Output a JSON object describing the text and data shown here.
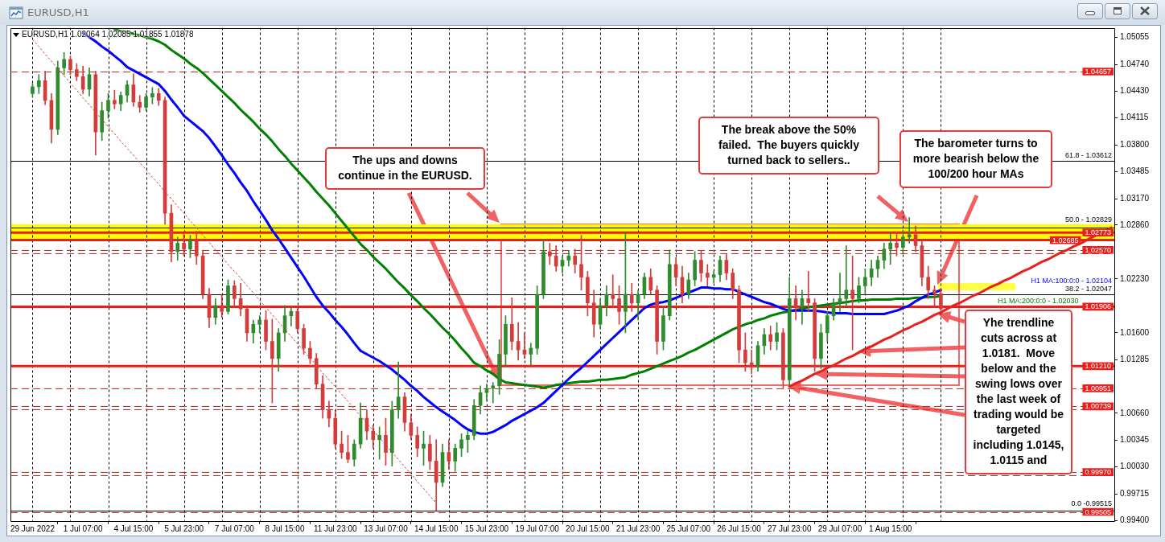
{
  "chart_data": {
    "type": "candlestick",
    "title": "EURUSD,H1",
    "subtitle": "EURUSD,H1 1.02064 1.02085 1.01855 1.01878",
    "categories": [
      "29 Jun 2022",
      null,
      null,
      null,
      null,
      null,
      null,
      null,
      "1 Jul 07:00",
      null,
      null,
      null,
      null,
      null,
      null,
      null,
      "4 Jul 15:00",
      null,
      null,
      null,
      null,
      null,
      null,
      null,
      "5 Jul 23:00",
      null,
      null,
      null,
      null,
      null,
      null,
      null,
      "7 Jul 07:00",
      null,
      null,
      null,
      null,
      null,
      null,
      null,
      "8 Jul 15:00",
      null,
      null,
      null,
      null,
      null,
      null,
      null,
      "11 Jul 23:00",
      null,
      null,
      null,
      null,
      null,
      null,
      null,
      "13 Jul 07:00",
      null,
      null,
      null,
      null,
      null,
      null,
      null,
      "14 Jul 15:00",
      null,
      null,
      null,
      null,
      null,
      null,
      null,
      "15 Jul 23:00",
      null,
      null,
      null,
      null,
      null,
      null,
      null,
      "19 Jul 07:00",
      null,
      null,
      null,
      null,
      null,
      null,
      null,
      "20 Jul 15:00",
      null,
      null,
      null,
      null,
      null,
      null,
      null,
      "21 Jul 23:00",
      null,
      null,
      null,
      null,
      null,
      null,
      null,
      "25 Jul 07:00",
      null,
      null,
      null,
      null,
      null,
      null,
      null,
      "26 Jul 15:00",
      null,
      null,
      null,
      null,
      null,
      null,
      null,
      "27 Jul 23:00",
      null,
      null,
      null,
      null,
      null,
      null,
      null,
      "29 Jul 07:00",
      null,
      null,
      null,
      null,
      null,
      null,
      null,
      "1 Aug 15:00",
      null,
      null,
      null,
      null,
      null,
      null,
      null,
      null,
      null,
      null,
      null,
      null,
      null,
      null,
      null,
      null,
      null,
      null,
      null,
      null,
      null,
      null,
      null,
      null,
      null,
      null,
      null,
      null,
      null,
      null,
      null,
      null,
      null,
      null,
      null
    ],
    "ohlc": [
      [
        1.044,
        1.0452,
        1.0436,
        1.0448
      ],
      [
        1.0448,
        1.0462,
        1.044,
        1.0455
      ],
      [
        1.0455,
        1.0466,
        1.0427,
        1.0432
      ],
      [
        1.0432,
        1.044,
        1.0382,
        1.0398
      ],
      [
        1.0398,
        1.0478,
        1.0392,
        1.047
      ],
      [
        1.047,
        1.0488,
        1.0462,
        1.048
      ],
      [
        1.048,
        1.0484,
        1.0462,
        1.0468
      ],
      [
        1.0468,
        1.0475,
        1.0455,
        1.046
      ],
      [
        1.046,
        1.0472,
        1.044,
        1.0445
      ],
      [
        1.0445,
        1.047,
        1.0437,
        1.0462
      ],
      [
        1.0462,
        1.0466,
        1.0368,
        1.0395
      ],
      [
        1.0395,
        1.043,
        1.0385,
        1.042
      ],
      [
        1.042,
        1.044,
        1.0411,
        1.0432
      ],
      [
        1.0432,
        1.0444,
        1.0422,
        1.0428
      ],
      [
        1.0428,
        1.0442,
        1.042,
        1.0438
      ],
      [
        1.0438,
        1.0455,
        1.043,
        1.045
      ],
      [
        1.045,
        1.0463,
        1.0425,
        1.043
      ],
      [
        1.043,
        1.0438,
        1.0418,
        1.0424
      ],
      [
        1.0424,
        1.044,
        1.042,
        1.0436
      ],
      [
        1.0436,
        1.0447,
        1.0428,
        1.044
      ],
      [
        1.044,
        1.0446,
        1.0426,
        1.0432
      ],
      [
        1.0432,
        1.0436,
        1.0287,
        1.03
      ],
      [
        1.03,
        1.031,
        1.0243,
        1.0255
      ],
      [
        1.0255,
        1.0272,
        1.0245,
        1.0265
      ],
      [
        1.0265,
        1.0276,
        1.025,
        1.0258
      ],
      [
        1.0258,
        1.0274,
        1.0248,
        1.0268
      ],
      [
        1.0268,
        1.0279,
        1.024,
        1.025
      ],
      [
        1.025,
        1.0256,
        1.02,
        1.0205
      ],
      [
        1.0205,
        1.0212,
        1.0166,
        1.0178
      ],
      [
        1.0178,
        1.02,
        1.017,
        1.0192
      ],
      [
        1.0192,
        1.0205,
        1.0178,
        1.0185
      ],
      [
        1.0185,
        1.0222,
        1.0182,
        1.0215
      ],
      [
        1.0215,
        1.0221,
        1.019,
        1.02
      ],
      [
        1.02,
        1.0218,
        1.018,
        1.0188
      ],
      [
        1.0188,
        1.0192,
        1.015,
        1.016
      ],
      [
        1.016,
        1.0175,
        1.0148,
        1.017
      ],
      [
        1.017,
        1.018,
        1.016,
        1.0175
      ],
      [
        1.0175,
        1.0186,
        1.014,
        1.015
      ],
      [
        1.015,
        1.0176,
        1.0078,
        1.013
      ],
      [
        1.013,
        1.0165,
        1.0115,
        1.016
      ],
      [
        1.016,
        1.0192,
        1.015,
        1.018
      ],
      [
        1.018,
        1.019,
        1.0168,
        1.0185
      ],
      [
        1.0185,
        1.0188,
        1.016,
        1.0165
      ],
      [
        1.0165,
        1.017,
        1.0135,
        1.0142
      ],
      [
        1.0142,
        1.015,
        1.0124,
        1.013
      ],
      [
        1.013,
        1.0136,
        1.0095,
        1.01
      ],
      [
        1.01,
        1.011,
        1.006,
        1.007
      ],
      [
        1.007,
        1.008,
        1.005,
        1.006
      ],
      [
        1.006,
        1.007,
        1.0025,
        1.003
      ],
      [
        1.003,
        1.0045,
        1.0013,
        1.002
      ],
      [
        1.002,
        1.004,
        1.0008,
        1.0012
      ],
      [
        1.0012,
        1.0035,
        1.0004,
        1.003
      ],
      [
        1.003,
        1.0078,
        1.0025,
        1.006
      ],
      [
        1.006,
        1.007,
        1.0035,
        1.0045
      ],
      [
        1.0045,
        1.0052,
        1.0025,
        1.0035
      ],
      [
        1.0035,
        1.005,
        1.0012,
        1.004
      ],
      [
        1.004,
        1.006,
        1.0005,
        1.002
      ],
      [
        1.002,
        1.008,
        1.0004,
        1.007
      ],
      [
        1.007,
        1.0126,
        1.006,
        1.0085
      ],
      [
        1.0085,
        1.009,
        1.0045,
        1.0055
      ],
      [
        1.0055,
        1.0065,
        1.0035,
        1.004
      ],
      [
        1.004,
        1.005,
        1.0015,
        1.0025
      ],
      [
        1.0025,
        1.0045,
        1.0005,
        1.003
      ],
      [
        1.003,
        1.004,
        1.0,
        1.001
      ],
      [
        1.001,
        1.0035,
        0.9952,
        0.9985
      ],
      [
        0.9985,
        1.003,
        0.998,
        1.002
      ],
      [
        1.002,
        1.0035,
        1.0,
        1.001
      ],
      [
        1.001,
        1.003,
        0.9998,
        1.0025
      ],
      [
        1.0025,
        1.0042,
        1.0015,
        1.0035
      ],
      [
        1.0035,
        1.0045,
        1.002,
        1.004
      ],
      [
        1.004,
        1.0082,
        1.0035,
        1.0075
      ],
      [
        1.0075,
        1.0098,
        1.0065,
        1.009
      ],
      [
        1.009,
        1.01,
        1.008,
        1.0095
      ],
      [
        1.0095,
        1.0102,
        1.0078,
        1.0098
      ],
      [
        1.0098,
        1.0152,
        1.0088,
        1.0135
      ],
      [
        1.0135,
        1.018,
        1.012,
        1.017
      ],
      [
        1.017,
        1.0201,
        1.014,
        1.015
      ],
      [
        1.015,
        1.0172,
        1.0128,
        1.014
      ],
      [
        1.014,
        1.016,
        1.013,
        1.0135
      ],
      [
        1.0135,
        1.0148,
        1.0122,
        1.0142
      ],
      [
        1.0142,
        1.0215,
        1.0135,
        1.0205
      ],
      [
        1.0205,
        1.0269,
        1.02,
        1.0255
      ],
      [
        1.0255,
        1.0265,
        1.024,
        1.025
      ],
      [
        1.025,
        1.0262,
        1.0232,
        1.0238
      ],
      [
        1.0238,
        1.025,
        1.023,
        1.0245
      ],
      [
        1.0245,
        1.0256,
        1.0238,
        1.025
      ],
      [
        1.025,
        1.0258,
        1.023,
        1.024
      ],
      [
        1.024,
        1.0274,
        1.021,
        1.0225
      ],
      [
        1.0225,
        1.0232,
        1.018,
        1.0195
      ],
      [
        1.0195,
        1.021,
        1.0155,
        1.017
      ],
      [
        1.017,
        1.02,
        1.0165,
        1.0192
      ],
      [
        1.0192,
        1.0215,
        1.018,
        1.0205
      ],
      [
        1.0205,
        1.0228,
        1.019,
        1.02
      ],
      [
        1.02,
        1.0215,
        1.017,
        1.0185
      ],
      [
        1.0185,
        1.0278,
        1.016,
        1.0205
      ],
      [
        1.0205,
        1.0218,
        1.0185,
        1.0195
      ],
      [
        1.0195,
        1.021,
        1.0175,
        1.0205
      ],
      [
        1.0205,
        1.023,
        1.02,
        1.0225
      ],
      [
        1.0225,
        1.0235,
        1.0205,
        1.021
      ],
      [
        1.021,
        1.0215,
        1.0135,
        1.015
      ],
      [
        1.015,
        1.019,
        1.014,
        1.018
      ],
      [
        1.018,
        1.0257,
        1.0175,
        1.024
      ],
      [
        1.024,
        1.0248,
        1.0215,
        1.0225
      ],
      [
        1.0225,
        1.0238,
        1.0195,
        1.0205
      ],
      [
        1.0205,
        1.023,
        1.02,
        1.0222
      ],
      [
        1.0222,
        1.0255,
        1.0215,
        1.0245
      ],
      [
        1.0245,
        1.0256,
        1.022,
        1.023
      ],
      [
        1.023,
        1.024,
        1.0215,
        1.0225
      ],
      [
        1.0225,
        1.0232,
        1.0218,
        1.0228
      ],
      [
        1.0228,
        1.025,
        1.022,
        1.0245
      ],
      [
        1.0245,
        1.0252,
        1.0222,
        1.023
      ],
      [
        1.023,
        1.0235,
        1.02,
        1.021
      ],
      [
        1.021,
        1.0215,
        1.0125,
        1.014
      ],
      [
        1.014,
        1.016,
        1.0115,
        1.0125
      ],
      [
        1.0125,
        1.014,
        1.0112,
        1.012
      ],
      [
        1.012,
        1.015,
        1.0115,
        1.0145
      ],
      [
        1.0145,
        1.0165,
        1.0135,
        1.0158
      ],
      [
        1.0158,
        1.0168,
        1.014,
        1.015
      ],
      [
        1.015,
        1.0172,
        1.014,
        1.016
      ],
      [
        1.016,
        1.0165,
        1.0095,
        1.0105
      ],
      [
        1.0105,
        1.0225,
        1.01,
        1.02
      ],
      [
        1.02,
        1.0215,
        1.0175,
        1.019
      ],
      [
        1.019,
        1.021,
        1.017,
        1.02
      ],
      [
        1.02,
        1.0232,
        1.0185,
        1.0195
      ],
      [
        1.0195,
        1.02,
        1.0115,
        1.013
      ],
      [
        1.013,
        1.017,
        1.0118,
        1.016
      ],
      [
        1.016,
        1.0185,
        1.015,
        1.018
      ],
      [
        1.018,
        1.02,
        1.0175,
        1.0195
      ],
      [
        1.0195,
        1.023,
        1.0185,
        1.02
      ],
      [
        1.02,
        1.0262,
        1.019,
        1.021
      ],
      [
        1.021,
        1.025,
        1.014,
        1.02
      ],
      [
        1.02,
        1.0225,
        1.0195,
        1.0215
      ],
      [
        1.0215,
        1.0235,
        1.0205,
        1.0225
      ],
      [
        1.0225,
        1.0245,
        1.0215,
        1.0235
      ],
      [
        1.0235,
        1.025,
        1.0225,
        1.0245
      ],
      [
        1.0245,
        1.0265,
        1.0235,
        1.0258
      ],
      [
        1.0258,
        1.0277,
        1.024,
        1.0265
      ],
      [
        1.0265,
        1.0278,
        1.025,
        1.026
      ],
      [
        1.026,
        1.028,
        1.0252,
        1.0272
      ],
      [
        1.0272,
        1.0295,
        1.0265,
        1.0275
      ],
      [
        1.0275,
        1.0285,
        1.0255,
        1.0262
      ],
      [
        1.0262,
        1.0268,
        1.0215,
        1.0225
      ],
      [
        1.0225,
        1.0238,
        1.02,
        1.021
      ],
      [
        1.021,
        1.0215,
        1.019,
        1.0206
      ],
      [
        1.0206,
        1.0212,
        1.0186,
        1.0188
      ],
      null,
      null,
      null,
      null,
      null,
      null,
      null,
      null,
      null,
      null,
      null,
      null,
      null,
      null,
      null,
      null,
      null,
      null,
      null,
      null,
      null,
      null,
      null,
      null,
      null,
      null,
      null
    ],
    "colors": [
      "#2e8b2e",
      "#2e8b2e",
      "#d43c3c",
      "#d43c3c",
      "#2e8b2e",
      "#2e8b2e",
      "#d43c3c",
      "#d43c3c",
      "#d43c3c",
      "#2e8b2e",
      "#d43c3c",
      "#2e8b2e",
      "#2e8b2e",
      "#d43c3c",
      "#2e8b2e",
      "#2e8b2e",
      "#d43c3c",
      "#d43c3c",
      "#2e8b2e",
      "#2e8b2e",
      "#d43c3c",
      "#d43c3c",
      "#d43c3c",
      "#2e8b2e",
      "#d43c3c",
      "#2e8b2e",
      "#d43c3c",
      "#d43c3c",
      "#d43c3c",
      "#2e8b2e",
      "#d43c3c",
      "#2e8b2e",
      "#d43c3c",
      "#d43c3c",
      "#d43c3c",
      "#2e8b2e",
      "#2e8b2e",
      "#d43c3c",
      "#d43c3c",
      "#2e8b2e",
      "#2e8b2e",
      "#2e8b2e",
      "#d43c3c",
      "#d43c3c",
      "#d43c3c",
      "#d43c3c",
      "#d43c3c",
      "#d43c3c",
      "#d43c3c",
      "#d43c3c",
      "#d43c3c",
      "#2e8b2e",
      "#2e8b2e",
      "#d43c3c",
      "#d43c3c",
      "#2e8b2e",
      "#d43c3c",
      "#2e8b2e",
      "#2e8b2e",
      "#d43c3c",
      "#d43c3c",
      "#d43c3c",
      "#2e8b2e",
      "#d43c3c",
      "#d43c3c",
      "#2e8b2e",
      "#d43c3c",
      "#2e8b2e",
      "#2e8b2e",
      "#2e8b2e",
      "#2e8b2e",
      "#2e8b2e",
      "#2e8b2e",
      "#2e8b2e",
      "#2e8b2e",
      "#2e8b2e",
      "#d43c3c",
      "#d43c3c",
      "#d43c3c",
      "#2e8b2e",
      "#2e8b2e",
      "#2e8b2e",
      "#d43c3c",
      "#d43c3c",
      "#2e8b2e",
      "#2e8b2e",
      "#d43c3c",
      "#d43c3c",
      "#d43c3c",
      "#d43c3c",
      "#2e8b2e",
      "#2e8b2e",
      "#d43c3c",
      "#d43c3c",
      "#2e8b2e",
      "#d43c3c",
      "#2e8b2e",
      "#2e8b2e",
      "#d43c3c",
      "#d43c3c",
      "#2e8b2e",
      "#2e8b2e",
      "#d43c3c",
      "#d43c3c",
      "#2e8b2e",
      "#2e8b2e",
      "#d43c3c",
      "#d43c3c",
      "#2e8b2e",
      "#2e8b2e",
      "#d43c3c",
      "#d43c3c",
      "#d43c3c",
      "#d43c3c",
      "#d43c3c",
      "#2e8b2e",
      "#2e8b2e",
      "#d43c3c",
      "#2e8b2e",
      "#d43c3c",
      "#2e8b2e",
      "#d43c3c",
      "#2e8b2e",
      "#d43c3c",
      "#d43c3c",
      "#2e8b2e",
      "#2e8b2e",
      "#2e8b2e",
      "#2e8b2e",
      "#2e8b2e",
      "#d43c3c",
      "#2e8b2e",
      "#2e8b2e",
      "#2e8b2e",
      "#2e8b2e",
      "#2e8b2e",
      "#2e8b2e",
      "#d43c3c",
      "#2e8b2e",
      "#2e8b2e",
      "#d43c3c",
      "#d43c3c",
      "#d43c3c",
      "#d43c3c",
      "#d43c3c",
      null,
      null,
      null,
      null,
      null,
      null,
      null,
      null,
      null,
      null,
      null,
      null,
      null,
      null,
      null,
      null,
      null,
      null,
      null,
      null,
      null,
      null,
      null,
      null,
      null,
      null,
      null
    ],
    "series": [
      {
        "type": "line",
        "name": "H1 MA:100:0:0 - 1.02104",
        "color": "#0000ff",
        "values": [
          null,
          null,
          null,
          null,
          null,
          null,
          null,
          null,
          1.0511,
          1.0506,
          1.0501,
          1.0495,
          1.049,
          1.0484,
          1.0478,
          1.0471,
          1.0467,
          1.0463,
          1.0459,
          1.0455,
          1.0451,
          1.0443,
          1.0433,
          1.0424,
          1.0414,
          1.0408,
          1.0402,
          1.0396,
          1.0388,
          1.0378,
          1.0368,
          1.0357,
          1.0347,
          1.0336,
          1.0326,
          1.0314,
          1.0303,
          1.0292,
          1.028,
          1.027,
          1.0259,
          1.0248,
          1.0237,
          1.0226,
          1.0214,
          1.0202,
          1.0192,
          1.0184,
          1.0175,
          1.0167,
          1.0158,
          1.0148,
          1.0139,
          1.0135,
          1.0131,
          1.0127,
          1.0122,
          1.0117,
          1.0111,
          1.0105,
          1.0098,
          1.0092,
          1.0085,
          1.0079,
          1.0073,
          1.0068,
          1.0063,
          1.0058,
          1.0052,
          1.0047,
          1.0044,
          1.0042,
          1.0042,
          1.0044,
          1.0048,
          1.0052,
          1.0057,
          1.0061,
          1.0065,
          1.0069,
          1.0073,
          1.0078,
          1.0085,
          1.0092,
          1.0099,
          1.0106,
          1.0113,
          1.0119,
          1.0126,
          1.0133,
          1.014,
          1.0147,
          1.0154,
          1.0161,
          1.0168,
          1.0175,
          1.0182,
          1.0189,
          1.0193,
          1.0195,
          1.0196,
          1.0198,
          1.0201,
          1.0204,
          1.0207,
          1.021,
          1.0213,
          1.0213,
          1.0212,
          1.0212,
          1.0211,
          1.0211,
          1.0208,
          1.0205,
          1.0202,
          1.0199,
          1.0196,
          1.0194,
          1.0191,
          1.0188,
          1.0186,
          1.0186,
          1.0186,
          1.0186,
          1.0186,
          1.0185,
          1.0184,
          1.0183,
          1.0183,
          1.0183,
          1.0182,
          1.0182,
          1.0182,
          1.0182,
          1.0182,
          1.0182,
          1.0184,
          1.0186,
          1.0189,
          1.0192,
          1.0197,
          1.0201,
          1.0205,
          1.0207,
          1.021,
          null,
          null,
          null,
          null,
          null,
          null,
          null,
          null,
          null,
          null,
          null,
          null,
          null,
          null,
          null,
          null,
          null,
          null,
          null,
          null,
          null,
          null,
          null,
          null,
          null,
          null,
          null
        ]
      },
      {
        "type": "line",
        "name": "H1 MA:200:0:0 - 1.02030",
        "color": "#008000",
        "values": [
          null,
          null,
          null,
          null,
          null,
          null,
          null,
          null,
          null,
          null,
          null,
          null,
          null,
          1.0515,
          1.0513,
          1.0512,
          1.051,
          1.0508,
          1.0506,
          1.0504,
          1.0501,
          1.0497,
          1.0491,
          1.0486,
          1.0481,
          1.0475,
          1.047,
          1.0464,
          1.0457,
          1.045,
          1.0443,
          1.0436,
          1.0429,
          1.0421,
          1.0414,
          1.0407,
          1.0399,
          1.0392,
          1.0384,
          1.0375,
          1.0367,
          1.0358,
          1.035,
          1.0342,
          1.0334,
          1.0325,
          1.0317,
          1.0309,
          1.03,
          1.0291,
          1.0282,
          1.0273,
          1.0264,
          1.0257,
          1.0249,
          1.0242,
          1.0235,
          1.0227,
          1.0219,
          1.0212,
          1.0204,
          1.0197,
          1.0189,
          1.0182,
          1.0174,
          1.0166,
          1.0159,
          1.0151,
          1.0142,
          1.0134,
          1.0125,
          1.0121,
          1.0116,
          1.0112,
          1.0106,
          1.0102,
          1.0101,
          1.01,
          1.0099,
          1.0098,
          1.0097,
          1.0096,
          1.0097,
          1.0099,
          1.01,
          1.0101,
          1.0102,
          1.0103,
          1.0103,
          1.0104,
          1.0105,
          1.0105,
          1.0106,
          1.0107,
          1.0108,
          1.0111,
          1.0113,
          1.0115,
          1.0118,
          1.0121,
          1.0124,
          1.0127,
          1.013,
          1.0133,
          1.0137,
          1.014,
          1.0144,
          1.0148,
          1.0152,
          1.0156,
          1.016,
          1.0164,
          1.0167,
          1.017,
          1.0172,
          1.0175,
          1.0177,
          1.018,
          1.0182,
          1.0184,
          1.0185,
          1.0187,
          1.0188,
          1.019,
          1.0191,
          1.0192,
          1.0193,
          1.0194,
          1.0195,
          1.0196,
          1.0197,
          1.0198,
          1.0198,
          1.0199,
          1.0199,
          1.0199,
          1.0199,
          1.02,
          1.02,
          1.02,
          1.0201,
          1.0201,
          1.0202,
          1.0202,
          1.0203,
          null,
          null,
          null,
          null,
          null,
          null,
          null,
          null,
          null,
          null,
          null,
          null,
          null,
          null,
          null,
          null,
          null,
          null,
          null,
          null,
          null,
          null,
          null,
          null,
          null,
          null,
          null
        ]
      },
      {
        "type": "line",
        "color": "#e8201c",
        "values": [
          null,
          null,
          null,
          null,
          null,
          null,
          null,
          null,
          null,
          null,
          null,
          null,
          null,
          null,
          null,
          null,
          null,
          null,
          null,
          null,
          null,
          null,
          null,
          null,
          null,
          null,
          null,
          null,
          null,
          null,
          null,
          null,
          null,
          null,
          null,
          null,
          null,
          null,
          null,
          null,
          null,
          null,
          null,
          null,
          null,
          null,
          null,
          null,
          null,
          null,
          null,
          null,
          null,
          null,
          null,
          null,
          null,
          null,
          null,
          null,
          null,
          null,
          null,
          null,
          null,
          null,
          null,
          null,
          null,
          null,
          null,
          null,
          null,
          null,
          null,
          null,
          null,
          null,
          null,
          null,
          null,
          null,
          null,
          null,
          null,
          null,
          null,
          null,
          null,
          null,
          null,
          null,
          null,
          null,
          null,
          null,
          null,
          null,
          null,
          null,
          null,
          null,
          null,
          null,
          null,
          null,
          null,
          null,
          null,
          null,
          null,
          null,
          null,
          null,
          null,
          null,
          null,
          null,
          null,
          null,
          1.0097,
          1.0101,
          1.0104,
          1.0108,
          1.0112,
          1.0115,
          1.0119,
          1.0122,
          1.0126,
          1.013,
          1.0133,
          1.0137,
          1.0141,
          1.0144,
          1.0148,
          1.0152,
          1.0155,
          1.0159,
          1.0163,
          1.0166,
          1.017,
          1.0173,
          1.0177,
          1.0181,
          1.0184,
          1.0188,
          1.0192,
          1.0195,
          1.0199,
          1.0203,
          1.0206,
          1.021,
          1.0214,
          1.0217,
          1.0221,
          1.0224,
          1.0228,
          1.0232,
          1.0235,
          1.0239,
          1.0243,
          1.0246,
          1.025,
          1.0254,
          1.0257,
          1.0261,
          1.0264,
          1.0268,
          1.0272,
          1.0275,
          1.0279,
          1.0283
        ]
      },
      {
        "type": "line",
        "color": "#d04040",
        "line_style": "dotted",
        "values": [
          1.0503,
          1.0495,
          1.0486,
          1.0478,
          1.0469,
          1.0461,
          1.0452,
          1.0444,
          1.0435,
          1.0427,
          1.0418,
          1.041,
          1.0401,
          1.0393,
          1.0384,
          1.0376,
          1.0368,
          1.0359,
          1.0351,
          1.0342,
          1.0334,
          1.0325,
          1.0317,
          1.0308,
          1.03,
          1.0291,
          1.0283,
          1.0274,
          1.0266,
          1.0257,
          1.0249,
          1.024,
          1.0232,
          1.0224,
          1.0215,
          1.0207,
          1.0198,
          1.019,
          1.0181,
          1.0173,
          1.0164,
          1.0156,
          1.0147,
          1.0139,
          1.013,
          1.0122,
          1.0113,
          1.0105,
          1.0097,
          1.0088,
          1.008,
          1.0071,
          1.0063,
          1.0054,
          1.0046,
          1.0037,
          1.0029,
          1.002,
          1.0012,
          1.0003,
          0.9995,
          0.9986,
          0.9978,
          0.9969,
          0.9961,
          null,
          null,
          null,
          null,
          null,
          null,
          null,
          null,
          null,
          null,
          null,
          null,
          null,
          null,
          null,
          null,
          null,
          null,
          null,
          null,
          null,
          null,
          null,
          null,
          null,
          null,
          null,
          null,
          null,
          null,
          null,
          null,
          null,
          null,
          null,
          null,
          null,
          null,
          null,
          null,
          null,
          null,
          null,
          null,
          null,
          null,
          null,
          null,
          null,
          null,
          null,
          null,
          null,
          null,
          null,
          null,
          null,
          null,
          null,
          null,
          null,
          null,
          null,
          null,
          null,
          null,
          null,
          null,
          null,
          null,
          null,
          null,
          null,
          null,
          null,
          null,
          null,
          null,
          null,
          null,
          null,
          null,
          null,
          null,
          null,
          null,
          null,
          null,
          null,
          null,
          null,
          null,
          null,
          null,
          null,
          null,
          null,
          null,
          null,
          null,
          null,
          null,
          null,
          null,
          null,
          null,
          null
        ]
      }
    ],
    "ylim": [
      0.994,
      1.0517
    ],
    "yticks": [
      1.05055,
      {
        "value": 1.0474,
        "label": "1.04740"
      },
      {
        "value": 1.0443,
        "label": "1.04430"
      },
      1.04115,
      {
        "value": 1.038,
        "label": "1.03800"
      },
      1.03485,
      {
        "value": 1.0317,
        "label": "1.03170"
      },
      {
        "value": 1.0286,
        "label": "1.02860"
      },
      {
        "value": 1.0223,
        "label": "1.02230"
      },
      {
        "value": 1.016,
        "label": "1.01600"
      },
      1.01285,
      {
        "value": 1.0066,
        "label": "1.00660"
      },
      1.00345,
      {
        "value": 1.0003,
        "label": "1.00030"
      },
      0.99715,
      {
        "value": 0.994,
        "label": "0.99400"
      }
    ],
    "grid": "x",
    "bands": [
      {
        "axis": "y",
        "from": 1.02685,
        "to": 1.0287,
        "color": "#ffff00"
      }
    ],
    "ref_lines": [
      {
        "axis": "y",
        "value": 1.04657,
        "label": "1.04657",
        "color": "#e8201c",
        "line_style": "dashed"
      },
      {
        "axis": "y",
        "value": 1.03612,
        "color": "#000000"
      },
      {
        "axis": "y",
        "value": 1.02829,
        "color": "#000000"
      },
      {
        "axis": "y",
        "value": 1.02773,
        "label": "1.02773",
        "color": "#e8201c"
      },
      {
        "axis": "y",
        "value": 1.02685,
        "label": "1.02685",
        "color": "#e8201c"
      },
      {
        "axis": "y",
        "value": 1.0257,
        "label": "1.02570",
        "color": "#e8201c",
        "line_style": "dashed"
      },
      {
        "axis": "y",
        "value": 1.02535,
        "color": "#e8201c",
        "line_style": "dashed"
      },
      {
        "axis": "y",
        "value": 1.02047,
        "color": "#000000"
      },
      {
        "axis": "y",
        "value": 1.01906,
        "label": "1.01906",
        "color": "#e8201c"
      },
      {
        "axis": "y",
        "value": 1.0121,
        "label": "1.01210",
        "color": "#e8201c"
      },
      {
        "axis": "y",
        "value": 1.00951,
        "label": "1.00951",
        "color": "#e8201c",
        "line_style": "dashed"
      },
      {
        "axis": "y",
        "value": 1.00739,
        "label": "1.00739",
        "color": "#e8201c",
        "line_style": "dashed"
      },
      {
        "axis": "y",
        "value": 1.00705,
        "color": "#e8201c",
        "line_style": "dashed"
      },
      {
        "axis": "y",
        "value": 0.9997,
        "label": "0.99970",
        "color": "#e8201c",
        "line_style": "dashed"
      },
      {
        "axis": "y",
        "value": 0.99933,
        "color": "#e8201c",
        "line_style": "dashed"
      },
      {
        "axis": "y",
        "value": 0.99515,
        "color": "#000000"
      },
      {
        "axis": "y",
        "value": 0.99505,
        "label": "0.99505",
        "color": "#e8201c",
        "line_style": "dashed"
      }
    ],
    "annotations": [
      "The ups and downs continue in the EURUSD.",
      "The break above the 50% failed.  The buyers quickly turned back to sellers..",
      "The barometer turns to more bearish below the 100/200 hour MAs",
      "Yhe trendline cuts across at 1.0181.  Move below and the swing lows over the last week of trading would be targeted including 1.0145, 1.0115 and",
      {
        "text": "61.8 - 1.03612",
        "y": 1.03612
      },
      {
        "text": "50.0 - 1.02829",
        "y": 1.02829
      },
      {
        "text": "38.2 - 1.02047",
        "y": 1.02047
      },
      {
        "text": "0.0 -0.99515",
        "y": 0.99515
      }
    ]
  }
}
